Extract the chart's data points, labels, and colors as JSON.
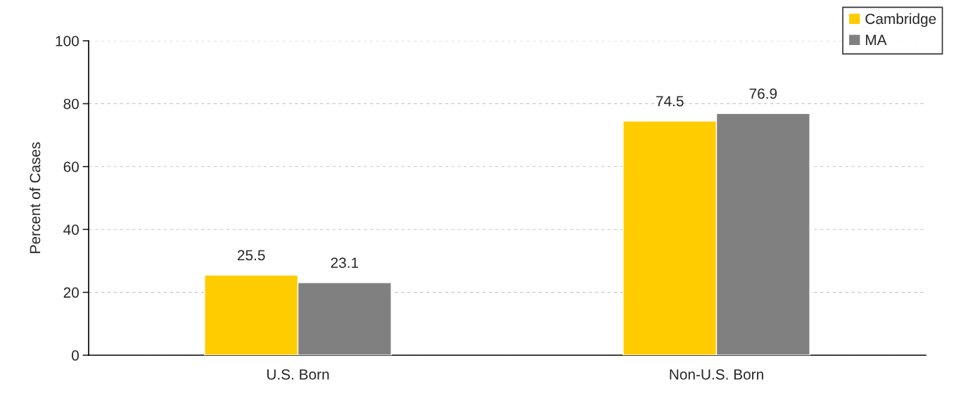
{
  "chart_data": {
    "type": "bar",
    "ylabel": "Percent of Cases",
    "categories": [
      "U.S. Born",
      "Non-U.S. Born"
    ],
    "series": [
      {
        "name": "Cambridge",
        "color": "#ffcc00",
        "values": [
          25.5,
          74.5
        ]
      },
      {
        "name": "MA",
        "color": "#808080",
        "values": [
          23.1,
          76.9
        ]
      }
    ],
    "ylim": [
      0,
      100
    ],
    "yticks": [
      0,
      20,
      40,
      60,
      80,
      100
    ],
    "grid": "y",
    "legend": "top right",
    "data_labels": true
  }
}
